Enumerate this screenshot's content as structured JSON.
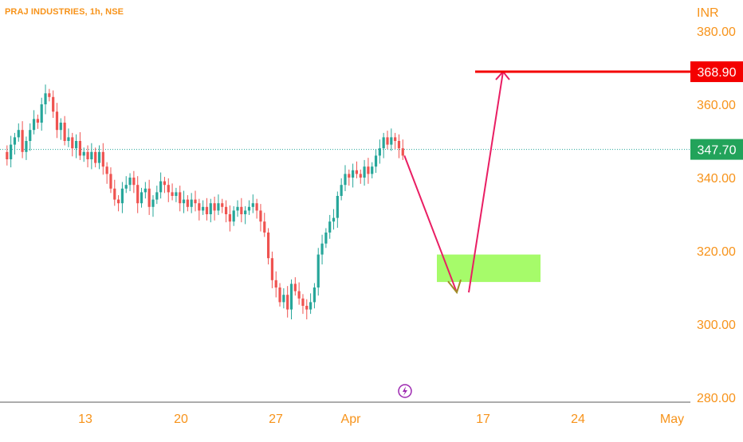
{
  "header": {
    "title": "PRAJ INDUSTRIES, 1h, NSE",
    "currency": "INR"
  },
  "price_labels": {
    "target": "368.90",
    "last": "347.70"
  },
  "colors": {
    "axis_text": "#f7931a",
    "up_candle": "#26a69a",
    "down_candle": "#ef5350",
    "target_line": "#f40000",
    "last_label_bg": "#22a35a",
    "arrow": "#e91e63",
    "zone_fill": "#a6fb6a",
    "zone_arrow": "#a08c26"
  },
  "icons": {
    "bottom_marker": "lightning-icon"
  },
  "chart_data": {
    "type": "candlestick",
    "title": "PRAJ INDUSTRIES, 1h, NSE",
    "y_axis": {
      "ticks": [
        "380.00",
        "360.00",
        "340.00",
        "320.00",
        "300.00",
        "280.00"
      ],
      "range": [
        280,
        380
      ],
      "unit": "INR"
    },
    "x_axis": {
      "ticks": [
        "13",
        "20",
        "27",
        "Apr",
        "17",
        "24",
        "May"
      ]
    },
    "price_path": [
      347,
      345,
      349,
      351,
      353,
      347,
      350,
      353,
      356,
      355,
      360,
      363,
      362,
      358,
      353,
      355,
      350,
      351,
      348,
      350,
      346,
      347,
      345,
      347,
      344,
      347,
      343,
      341,
      337,
      334,
      333,
      337,
      338,
      340,
      338,
      333,
      336,
      337,
      332,
      334,
      336,
      339,
      338,
      336,
      335,
      336,
      333,
      334,
      332,
      334,
      333,
      331,
      332,
      330,
      333,
      331,
      333,
      332,
      330,
      328,
      331,
      332,
      330,
      331,
      332,
      333,
      331,
      328,
      325,
      318,
      312,
      310,
      306,
      308,
      304,
      311,
      309,
      307,
      305,
      304,
      306,
      310,
      319,
      322,
      325,
      328,
      329,
      335,
      338,
      341,
      340,
      342,
      341,
      340,
      343,
      341,
      343,
      346,
      348,
      351,
      349,
      351,
      350,
      348,
      346
    ],
    "target_price": 368.9,
    "last_price": 347.7,
    "projection": {
      "down_to": 313,
      "up_to": 368.9
    },
    "buy_zone": {
      "low": 311.5,
      "high": 319
    }
  }
}
